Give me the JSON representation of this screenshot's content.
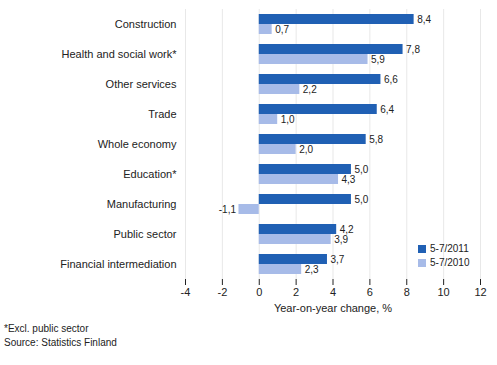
{
  "chart_data": {
    "type": "bar",
    "orientation": "horizontal",
    "categories": [
      "Construction",
      "Health and social work*",
      "Other services",
      "Trade",
      "Whole economy",
      "Education*",
      "Manufacturing",
      "Public sector",
      "Financial intermediation"
    ],
    "series": [
      {
        "name": "5-7/2011",
        "color": "#2060b4",
        "values": [
          8.4,
          7.8,
          6.6,
          6.4,
          5.8,
          5.0,
          5.0,
          4.2,
          3.7
        ],
        "value_labels": [
          "8,4",
          "7,8",
          "6,6",
          "6,4",
          "5,8",
          "5,0",
          "5,0",
          "4,2",
          "3,7"
        ]
      },
      {
        "name": "5-7/2010",
        "color": "#a7bbe8",
        "values": [
          0.7,
          5.9,
          2.2,
          1.0,
          2.0,
          4.3,
          -1.1,
          3.9,
          2.3
        ],
        "value_labels": [
          "0,7",
          "5,9",
          "2,2",
          "1,0",
          "2,0",
          "4,3",
          "-1,1",
          "3,9",
          "2,3"
        ]
      }
    ],
    "xlim": [
      -4,
      12
    ],
    "xticks": [
      -4,
      -2,
      0,
      2,
      4,
      6,
      8,
      10,
      12
    ],
    "x_label": "Year-on-year change, %",
    "grid": true,
    "data_labels": true,
    "legend": "bottom-right",
    "annotations": [
      "*Excl. public sector",
      "Source: Statistics Finland"
    ]
  }
}
